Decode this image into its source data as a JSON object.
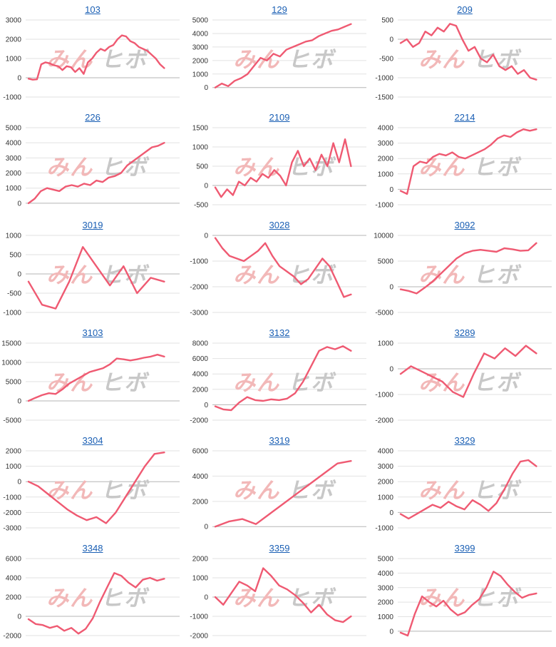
{
  "watermark": {
    "part1": "みん",
    "part2": "ヒボ",
    "color1": "#f2b8b8",
    "color2": "#c8c8c8"
  },
  "line_color": "#ef5a72",
  "chart_data": [
    {
      "type": "line",
      "title": "103",
      "yticks": [
        "3000",
        "2000",
        "1000",
        "0",
        "-1000"
      ],
      "ylim": [
        -1000,
        3000
      ],
      "values": [
        -50,
        -100,
        -80,
        700,
        800,
        750,
        650,
        600,
        400,
        600,
        550,
        300,
        500,
        200,
        800,
        1000,
        1300,
        1500,
        1400,
        1600,
        1700,
        2000,
        2200,
        2150,
        1900,
        1800,
        1600,
        1500,
        1400,
        1200,
        1000,
        700,
        500
      ]
    },
    {
      "type": "line",
      "title": "129",
      "yticks": [
        "5000",
        "4000",
        "3000",
        "2000",
        "1000",
        "0"
      ],
      "ylim": [
        -700,
        5000
      ],
      "values": [
        0,
        300,
        100,
        500,
        700,
        1000,
        1600,
        2200,
        2000,
        2500,
        2300,
        2800,
        3000,
        3200,
        3400,
        3500,
        3800,
        4000,
        4200,
        4300,
        4500,
        4700
      ]
    },
    {
      "type": "line",
      "title": "209",
      "yticks": [
        "500",
        "0",
        "-500",
        "-1000",
        "-1500"
      ],
      "ylim": [
        -1500,
        500
      ],
      "values": [
        -100,
        0,
        -200,
        -100,
        200,
        100,
        300,
        200,
        400,
        350,
        0,
        -300,
        -200,
        -500,
        -600,
        -400,
        -700,
        -800,
        -700,
        -900,
        -800,
        -1000,
        -1050
      ]
    },
    {
      "type": "line",
      "title": "226",
      "yticks": [
        "5000",
        "4000",
        "3000",
        "2000",
        "1000",
        "0"
      ],
      "ylim": [
        -100,
        5000
      ],
      "values": [
        0,
        300,
        800,
        1000,
        900,
        800,
        1100,
        1200,
        1100,
        1300,
        1200,
        1500,
        1400,
        1700,
        1800,
        2000,
        2500,
        2800,
        3100,
        3400,
        3700,
        3800,
        4000
      ]
    },
    {
      "type": "line",
      "title": "2109",
      "yticks": [
        "1500",
        "1000",
        "500",
        "0",
        "-500"
      ],
      "ylim": [
        -500,
        1500
      ],
      "values": [
        -50,
        -300,
        -100,
        -250,
        100,
        0,
        200,
        100,
        300,
        200,
        400,
        250,
        0,
        600,
        900,
        500,
        700,
        400,
        800,
        500,
        1100,
        600,
        1200,
        500
      ]
    },
    {
      "type": "line",
      "title": "2214",
      "yticks": [
        "4000",
        "3000",
        "2000",
        "1000",
        "0",
        "-1000"
      ],
      "ylim": [
        -1000,
        4000
      ],
      "values": [
        -100,
        -300,
        1500,
        1800,
        1700,
        2100,
        2300,
        2200,
        2400,
        2100,
        2000,
        2200,
        2400,
        2600,
        2900,
        3300,
        3500,
        3400,
        3700,
        3900,
        3800,
        3900
      ]
    },
    {
      "type": "line",
      "title": "3019",
      "yticks": [
        "1000",
        "500",
        "0",
        "-500",
        "-1000"
      ],
      "ylim": [
        -1000,
        1000
      ],
      "values": [
        -200,
        -800,
        -900,
        -200,
        700,
        200,
        -300,
        200,
        -500,
        -100,
        -200
      ]
    },
    {
      "type": "line",
      "title": "3028",
      "yticks": [
        "0",
        "-1000",
        "-2000",
        "-3000"
      ],
      "ylim": [
        -3000,
        0
      ],
      "values": [
        -100,
        -500,
        -800,
        -900,
        -1000,
        -800,
        -600,
        -300,
        -800,
        -1200,
        -1400,
        -1600,
        -1900,
        -1700,
        -1300,
        -900,
        -1200,
        -1800,
        -2400,
        -2300
      ]
    },
    {
      "type": "line",
      "title": "3092",
      "yticks": [
        "10000",
        "5000",
        "0",
        "-5000"
      ],
      "ylim": [
        -5000,
        10000
      ],
      "values": [
        -500,
        -800,
        -1300,
        -200,
        1000,
        2500,
        4000,
        5500,
        6500,
        7000,
        7200,
        7000,
        6800,
        7500,
        7300,
        7000,
        7100,
        8500
      ]
    },
    {
      "type": "line",
      "title": "3103",
      "yticks": [
        "15000",
        "10000",
        "5000",
        "0",
        "-5000"
      ],
      "ylim": [
        -5000,
        15000
      ],
      "values": [
        0,
        800,
        1500,
        2000,
        1800,
        3000,
        4500,
        5500,
        6500,
        7500,
        8000,
        8500,
        9500,
        11000,
        10800,
        10500,
        10800,
        11200,
        11500,
        12000,
        11500
      ]
    },
    {
      "type": "line",
      "title": "3132",
      "yticks": [
        "8000",
        "6000",
        "4000",
        "2000",
        "0",
        "-2000"
      ],
      "ylim": [
        -2000,
        8000
      ],
      "values": [
        -200,
        -600,
        -700,
        300,
        1000,
        600,
        500,
        700,
        600,
        800,
        1500,
        3000,
        5000,
        7000,
        7500,
        7200,
        7600,
        7000
      ]
    },
    {
      "type": "line",
      "title": "3289",
      "yticks": [
        "1000",
        "0",
        "-1000",
        "-2000"
      ],
      "ylim": [
        -2000,
        1000
      ],
      "values": [
        -200,
        100,
        -100,
        -300,
        -500,
        -900,
        -1100,
        -200,
        600,
        400,
        800,
        500,
        900,
        600
      ]
    },
    {
      "type": "line",
      "title": "3304",
      "yticks": [
        "2000",
        "1000",
        "0",
        "-1000",
        "-2000",
        "-3000"
      ],
      "ylim": [
        -3000,
        2000
      ],
      "values": [
        0,
        -300,
        -800,
        -1300,
        -1800,
        -2200,
        -2500,
        -2300,
        -2700,
        -2000,
        -1000,
        0,
        1000,
        1800,
        1900
      ]
    },
    {
      "type": "line",
      "title": "3319",
      "yticks": [
        "6000",
        "4000",
        "2000",
        "0"
      ],
      "ylim": [
        -100,
        6000
      ],
      "values": [
        0,
        400,
        600,
        200,
        1000,
        1800,
        2600,
        3400,
        4200,
        5000,
        5200
      ]
    },
    {
      "type": "line",
      "title": "3329",
      "yticks": [
        "4000",
        "3000",
        "2000",
        "1000",
        "0",
        "-1000"
      ],
      "ylim": [
        -1000,
        4000
      ],
      "values": [
        -100,
        -400,
        -100,
        200,
        500,
        300,
        700,
        400,
        200,
        800,
        500,
        100,
        600,
        1500,
        2500,
        3300,
        3400,
        3000
      ]
    },
    {
      "type": "line",
      "title": "3348",
      "yticks": [
        "6000",
        "4000",
        "2000",
        "0",
        "-2000"
      ],
      "ylim": [
        -2000,
        6000
      ],
      "values": [
        -300,
        -800,
        -900,
        -1200,
        -1000,
        -1500,
        -1200,
        -1800,
        -1300,
        -200,
        1500,
        3000,
        4500,
        4200,
        3500,
        3000,
        3800,
        4000,
        3700,
        3900
      ]
    },
    {
      "type": "line",
      "title": "3359",
      "yticks": [
        "2000",
        "1000",
        "0",
        "-1000",
        "-2000"
      ],
      "ylim": [
        -2000,
        2000
      ],
      "values": [
        0,
        -400,
        200,
        800,
        600,
        300,
        1500,
        1100,
        600,
        400,
        100,
        -300,
        -800,
        -400,
        -900,
        -1200,
        -1300,
        -1000
      ]
    },
    {
      "type": "line",
      "title": "3399",
      "yticks": [
        "5000",
        "4000",
        "3000",
        "2000",
        "1000",
        "0"
      ],
      "ylim": [
        -300,
        5000
      ],
      "values": [
        -100,
        -300,
        1200,
        2400,
        2000,
        1700,
        2100,
        1500,
        1100,
        1300,
        1800,
        2200,
        3000,
        4100,
        3800,
        3200,
        2700,
        2300,
        2500,
        2600
      ]
    }
  ]
}
